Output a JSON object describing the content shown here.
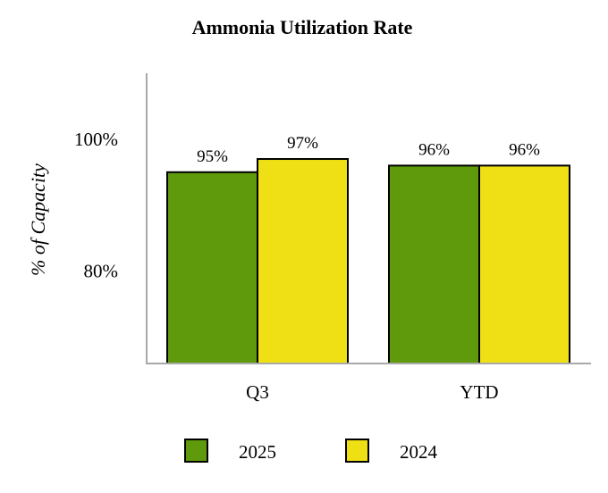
{
  "chart_data": {
    "type": "bar",
    "title": "Ammonia Utilization Rate",
    "ylabel": "% of Capacity",
    "xlabel": "",
    "categories": [
      "Q3",
      "YTD"
    ],
    "series": [
      {
        "name": "2025",
        "values": [
          95,
          96
        ],
        "labels": [
          "95%",
          "96%"
        ],
        "color": "#5e9a0b"
      },
      {
        "name": "2024",
        "values": [
          97,
          96
        ],
        "labels": [
          "97%",
          "96%"
        ],
        "color": "#efe016"
      }
    ],
    "yticks": [
      100,
      80
    ],
    "ytick_labels": [
      "100%",
      "80%"
    ],
    "ylim": [
      66,
      110
    ],
    "grid": false,
    "legend_position": "bottom"
  }
}
